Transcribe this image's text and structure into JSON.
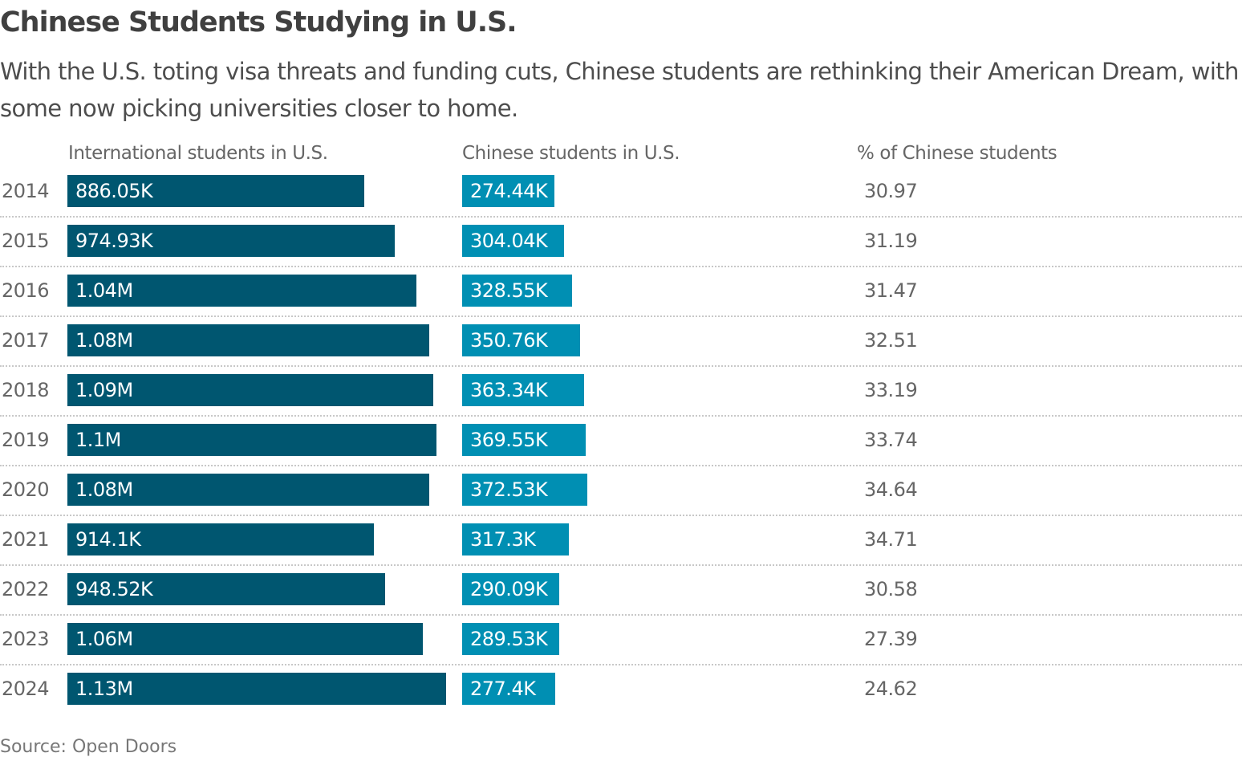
{
  "chart_data": {
    "type": "table",
    "title": "Chinese Students Studying in U.S.",
    "subtitle": "With the U.S. toting visa threats and funding cuts, Chinese students are rethinking their American Dream, with some now picking universities closer to home.",
    "columns": [
      "International students in U.S.",
      "Chinese students in U.S.",
      "% of Chinese students"
    ],
    "colors": {
      "international": "#005670",
      "chinese": "#008fb3"
    },
    "rows": [
      {
        "year": "2014",
        "intl": 886050,
        "intl_label": "886.05K",
        "cn": 274440,
        "cn_label": "274.44K",
        "pct": "30.97"
      },
      {
        "year": "2015",
        "intl": 974930,
        "intl_label": "974.93K",
        "cn": 304040,
        "cn_label": "304.04K",
        "pct": "31.19"
      },
      {
        "year": "2016",
        "intl": 1040000,
        "intl_label": "1.04M",
        "cn": 328550,
        "cn_label": "328.55K",
        "pct": "31.47"
      },
      {
        "year": "2017",
        "intl": 1080000,
        "intl_label": "1.08M",
        "cn": 350760,
        "cn_label": "350.76K",
        "pct": "32.51"
      },
      {
        "year": "2018",
        "intl": 1090000,
        "intl_label": "1.09M",
        "cn": 363340,
        "cn_label": "363.34K",
        "pct": "33.19"
      },
      {
        "year": "2019",
        "intl": 1100000,
        "intl_label": "1.1M",
        "cn": 369550,
        "cn_label": "369.55K",
        "pct": "33.74"
      },
      {
        "year": "2020",
        "intl": 1080000,
        "intl_label": "1.08M",
        "cn": 372530,
        "cn_label": "372.53K",
        "pct": "34.64"
      },
      {
        "year": "2021",
        "intl": 914100,
        "intl_label": "914.1K",
        "cn": 317300,
        "cn_label": "317.3K",
        "pct": "34.71"
      },
      {
        "year": "2022",
        "intl": 948520,
        "intl_label": "948.52K",
        "cn": 290090,
        "cn_label": "290.09K",
        "pct": "30.58"
      },
      {
        "year": "2023",
        "intl": 1060000,
        "intl_label": "1.06M",
        "cn": 289530,
        "cn_label": "289.53K",
        "pct": "27.39"
      },
      {
        "year": "2024",
        "intl": 1130000,
        "intl_label": "1.13M",
        "cn": 277400,
        "cn_label": "277.4K",
        "pct": "24.62"
      }
    ],
    "source": "Source: Open Doors"
  }
}
